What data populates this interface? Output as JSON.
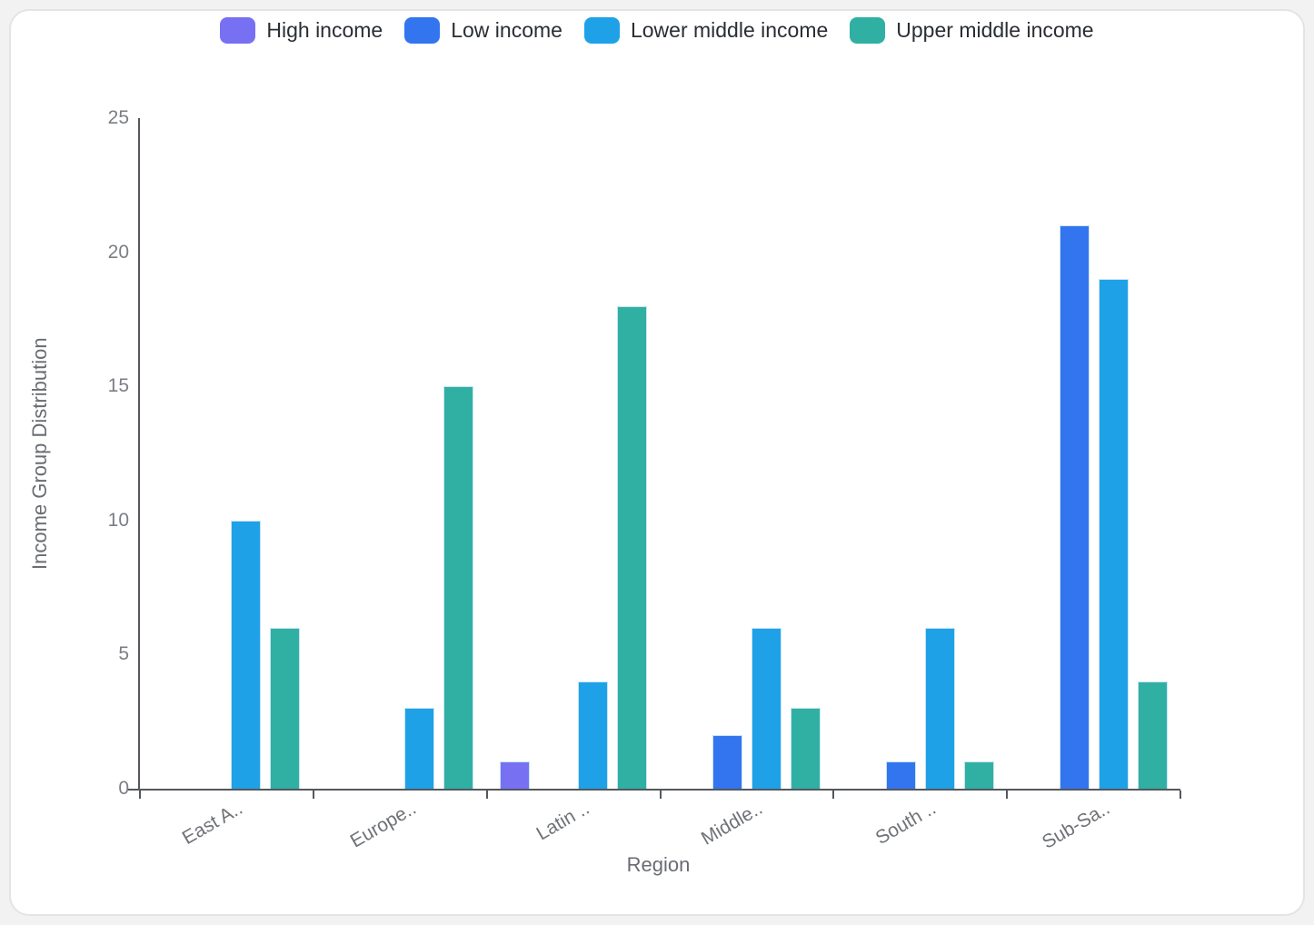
{
  "chart_data": {
    "type": "bar",
    "title": "",
    "xlabel": "Region",
    "ylabel": "Income Group Distribution",
    "categories": [
      "East A..",
      "Europe..",
      "Latin ..",
      "Middle..",
      "South ..",
      "Sub-Sa.."
    ],
    "series": [
      {
        "name": "High income",
        "color": "#7870F3",
        "values": [
          0,
          0,
          1,
          0,
          0,
          0
        ]
      },
      {
        "name": "Low income",
        "color": "#3375EE",
        "values": [
          0,
          0,
          0,
          2,
          1,
          21
        ]
      },
      {
        "name": "Lower middle income",
        "color": "#1FA1E8",
        "values": [
          10,
          3,
          4,
          6,
          6,
          19
        ]
      },
      {
        "name": "Upper middle income",
        "color": "#30B0A3",
        "values": [
          6,
          15,
          18,
          3,
          1,
          4
        ]
      }
    ],
    "ylim": [
      0,
      25
    ],
    "yticks": [
      0,
      5,
      10,
      15,
      20,
      25
    ],
    "grid": false,
    "legend_position": "top-center",
    "bar_outline_color": "#c9e4f5",
    "axis_line_color": "#54575d",
    "tick_label_color": "#7b7e84",
    "axis_title_color": "#696c71"
  }
}
